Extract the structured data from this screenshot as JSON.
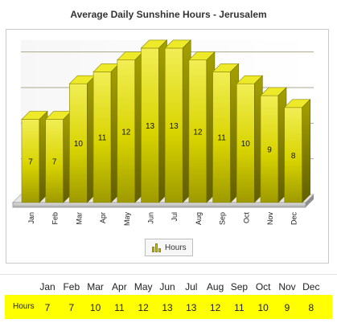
{
  "chart_data": {
    "type": "bar",
    "title": "Average Daily Sunshine Hours - Jerusalem",
    "categories": [
      "Jan",
      "Feb",
      "Mar",
      "Apr",
      "May",
      "Jun",
      "Jul",
      "Aug",
      "Sep",
      "Oct",
      "Nov",
      "Dec"
    ],
    "series": [
      {
        "name": "Hours",
        "values": [
          7,
          7,
          10,
          11,
          12,
          13,
          13,
          12,
          11,
          10,
          9,
          8
        ]
      }
    ],
    "ylim": [
      0,
      15
    ],
    "grid": true,
    "legend_position": "bottom",
    "bar_color": "#d8d400",
    "xlabel": "",
    "ylabel": ""
  },
  "table": {
    "row_label": "Hours"
  }
}
